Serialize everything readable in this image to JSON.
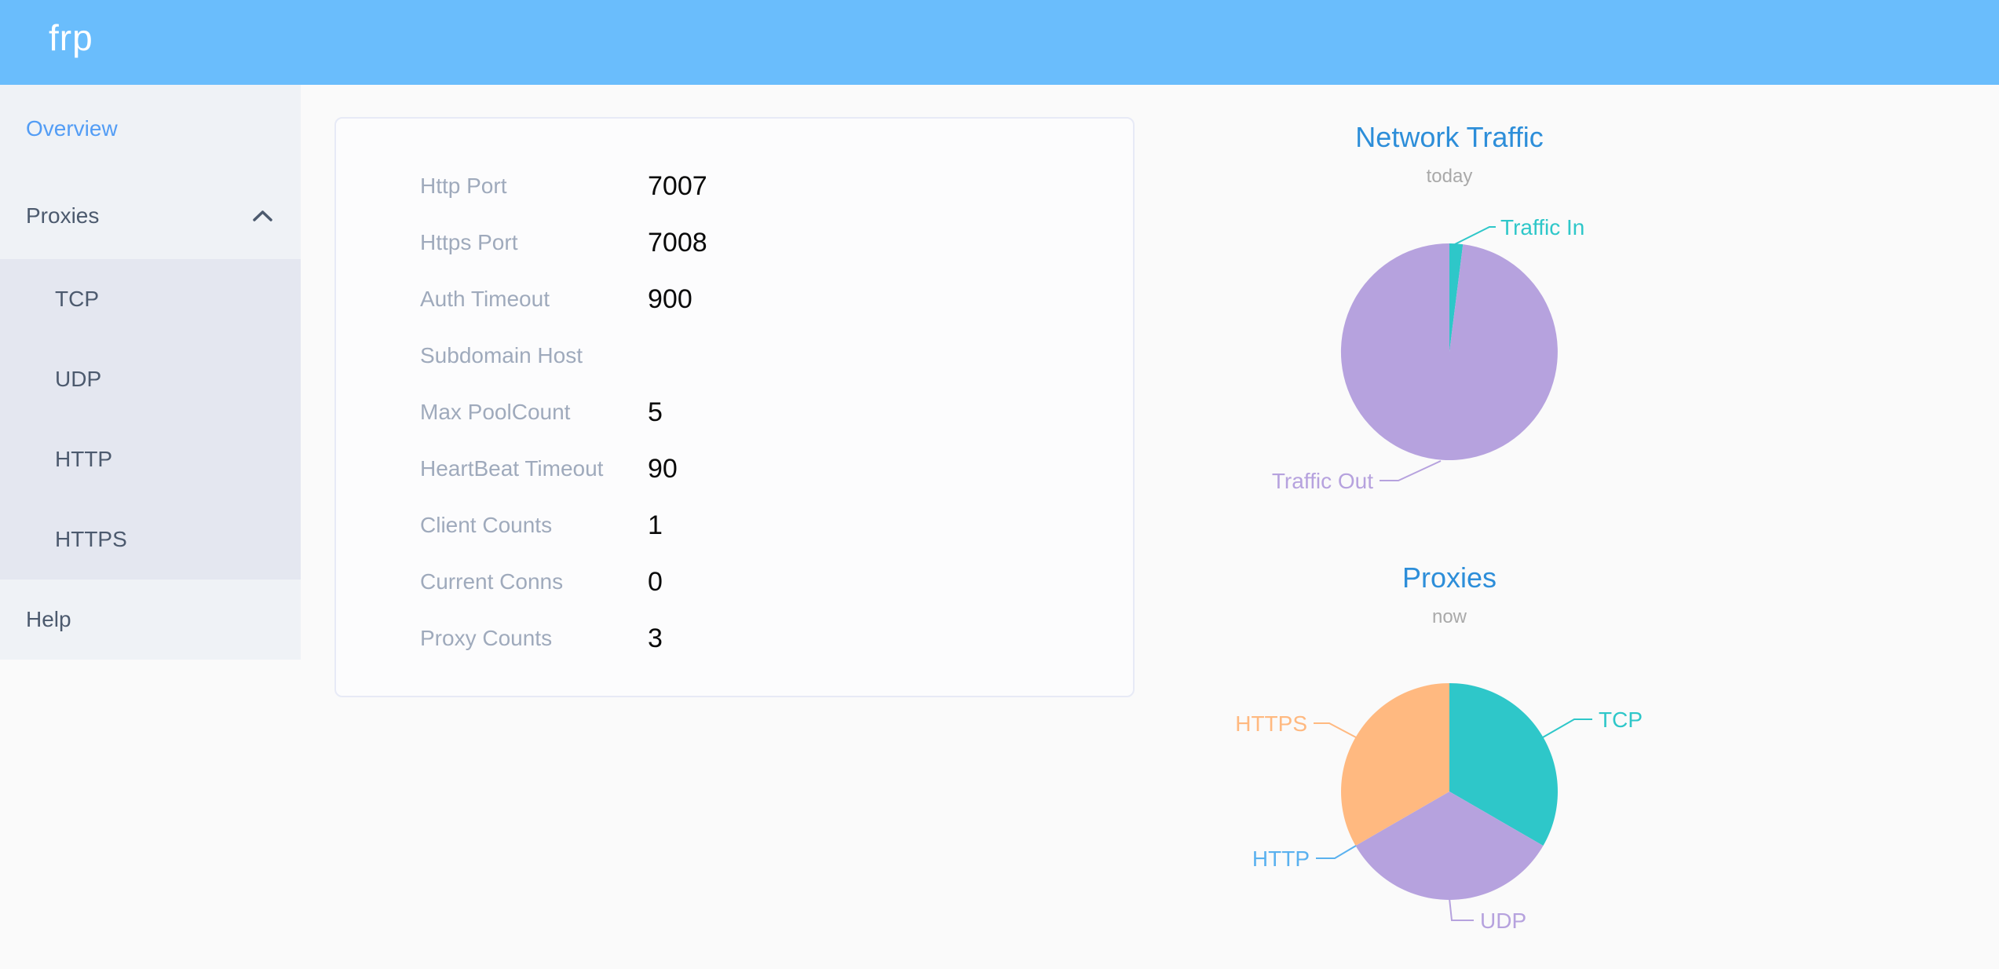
{
  "header": {
    "logo_text": "frp"
  },
  "sidebar": {
    "items": [
      {
        "label": "Overview",
        "active": true
      },
      {
        "label": "Proxies",
        "expanded": true,
        "children": [
          {
            "label": "TCP"
          },
          {
            "label": "UDP"
          },
          {
            "label": "HTTP"
          },
          {
            "label": "HTTPS"
          }
        ]
      },
      {
        "label": "Help"
      }
    ]
  },
  "server_info": {
    "rows": [
      {
        "label": "Http Port",
        "value": "7007"
      },
      {
        "label": "Https Port",
        "value": "7008"
      },
      {
        "label": "Auth Timeout",
        "value": "900"
      },
      {
        "label": "Subdomain Host",
        "value": ""
      },
      {
        "label": "Max PoolCount",
        "value": "5"
      },
      {
        "label": "HeartBeat Timeout",
        "value": "90"
      },
      {
        "label": "Client Counts",
        "value": "1"
      },
      {
        "label": "Current Conns",
        "value": "0"
      },
      {
        "label": "Proxy Counts",
        "value": "3"
      }
    ]
  },
  "chart_data": [
    {
      "type": "pie",
      "title": "Network Traffic",
      "subtitle": "today",
      "legend_position": "outside-labels",
      "series": [
        {
          "name": "Traffic In",
          "value": 2,
          "color": "#2ec7c9"
        },
        {
          "name": "Traffic Out",
          "value": 98,
          "color": "#b6a2de"
        }
      ]
    },
    {
      "type": "pie",
      "title": "Proxies",
      "subtitle": "now",
      "legend_position": "outside-labels",
      "series": [
        {
          "name": "TCP",
          "value": 1,
          "color": "#2ec7c9"
        },
        {
          "name": "UDP",
          "value": 1,
          "color": "#b6a2de"
        },
        {
          "name": "HTTP",
          "value": 0,
          "color": "#5ab1ef"
        },
        {
          "name": "HTTPS",
          "value": 1,
          "color": "#ffb980"
        }
      ]
    }
  ],
  "colors": {
    "header_bg": "#6abdfc",
    "chart_title": "#2d8ed9",
    "active_menu_item": "#539df5",
    "menu_text": "#4c5a6e",
    "info_label": "#9faabc"
  }
}
